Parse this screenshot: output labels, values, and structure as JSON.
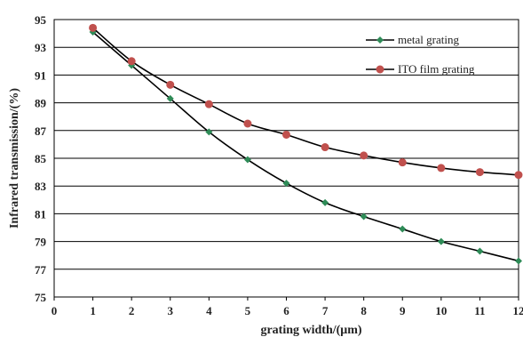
{
  "chart_data": {
    "type": "line",
    "title": "",
    "xlabel": "grating width/(μm)",
    "ylabel": "Infrared transmission/(%)",
    "xlim": [
      0,
      12
    ],
    "ylim": [
      75,
      95
    ],
    "x_ticks": [
      0,
      1,
      2,
      3,
      4,
      5,
      6,
      7,
      8,
      9,
      10,
      11,
      12
    ],
    "y_ticks": [
      75,
      77,
      79,
      81,
      83,
      85,
      87,
      89,
      91,
      93,
      95
    ],
    "grid": "horizontal",
    "legend_position": "top-right",
    "x": [
      1,
      2,
      3,
      4,
      5,
      6,
      7,
      8,
      9,
      10,
      11,
      12
    ],
    "series": [
      {
        "name": "metal grating",
        "marker": "diamond",
        "color": "#2e8b57",
        "values": [
          94.1,
          91.7,
          89.3,
          86.9,
          84.9,
          83.2,
          81.8,
          80.8,
          79.9,
          79.0,
          78.3,
          77.6
        ]
      },
      {
        "name": "ITO film grating",
        "marker": "circle",
        "color": "#c0504d",
        "values": [
          94.4,
          92.0,
          90.3,
          88.9,
          87.5,
          86.7,
          85.8,
          85.2,
          84.7,
          84.3,
          84.0,
          83.8
        ]
      }
    ]
  }
}
